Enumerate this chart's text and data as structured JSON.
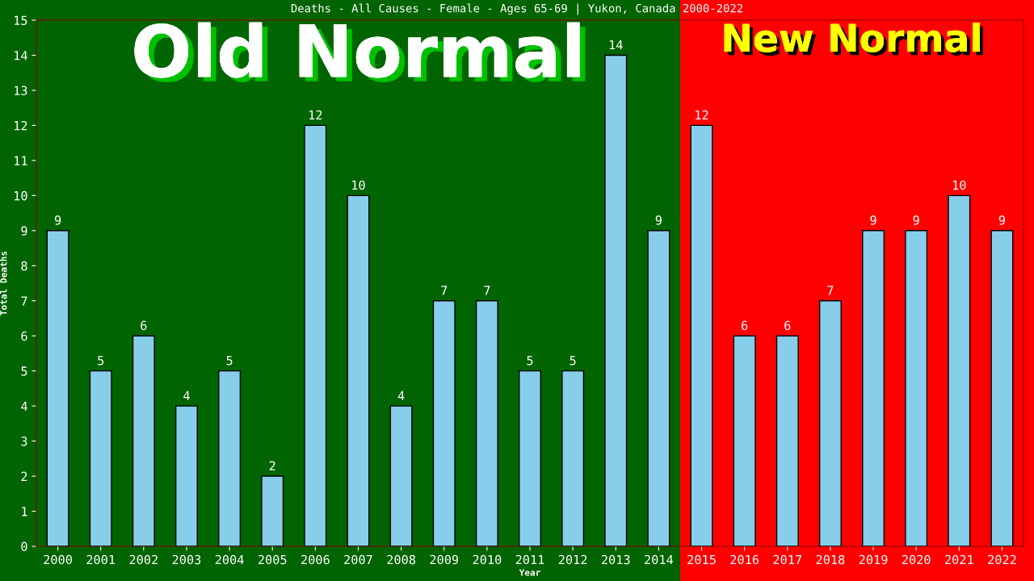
{
  "chart_data": {
    "type": "bar",
    "title": "Deaths - All Causes - Female - Ages 65-69 | Yukon, Canada 2000-2022",
    "xlabel": "Year",
    "ylabel": "Total Deaths",
    "categories": [
      "2000",
      "2001",
      "2002",
      "2003",
      "2004",
      "2005",
      "2006",
      "2007",
      "2008",
      "2009",
      "2010",
      "2011",
      "2012",
      "2013",
      "2014",
      "2015",
      "2016",
      "2017",
      "2018",
      "2019",
      "2020",
      "2021",
      "2022"
    ],
    "values": [
      9,
      5,
      6,
      4,
      5,
      2,
      12,
      10,
      4,
      7,
      7,
      5,
      5,
      14,
      9,
      12,
      6,
      6,
      7,
      9,
      9,
      10,
      9
    ],
    "color": "#87ceeb",
    "ylim": [
      0,
      15
    ],
    "yticks": [
      0,
      1,
      2,
      3,
      4,
      5,
      6,
      7,
      8,
      9,
      10,
      11,
      12,
      13,
      14,
      15
    ],
    "grid": false,
    "data_labels": true,
    "bands": [
      {
        "axis": "x",
        "from": "2000",
        "to": "2014",
        "label": "Old Normal",
        "color": "#006400"
      },
      {
        "axis": "x",
        "from": "2015",
        "to": "2022",
        "label": "New Normal",
        "color": "#ff0000"
      }
    ]
  }
}
